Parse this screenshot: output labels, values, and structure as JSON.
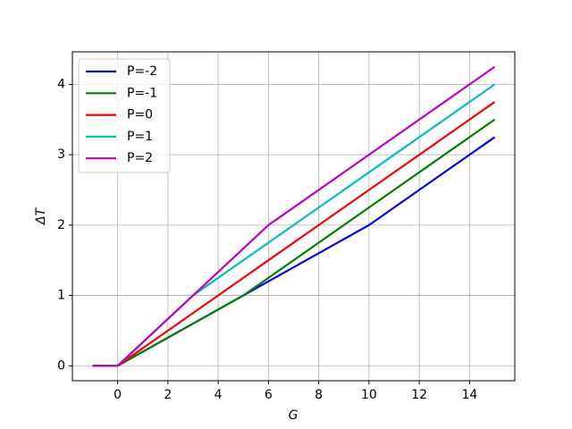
{
  "chart_data": {
    "type": "line",
    "xlabel": "G",
    "ylabel": "ΔT",
    "x": [
      -1,
      0,
      3,
      5,
      6,
      10,
      15
    ],
    "series": [
      {
        "name": "P=-2",
        "color": "#0000ff",
        "values": [
          0,
          0,
          0.6,
          1,
          1.2,
          2,
          3.25
        ]
      },
      {
        "name": "P=-1",
        "color": "#008000",
        "values": [
          0,
          0,
          0.6,
          1,
          1.25,
          2.25,
          3.5
        ]
      },
      {
        "name": "P=0",
        "color": "#ff0000",
        "values": [
          0,
          0,
          0.75,
          1.25,
          1.5,
          2.5,
          3.75
        ]
      },
      {
        "name": "P=1",
        "color": "#00bfbf",
        "values": [
          0,
          0,
          1,
          1.5,
          1.75,
          2.75,
          4
        ]
      },
      {
        "name": "P=2",
        "color": "#bf00bf",
        "values": [
          0,
          0,
          1,
          1.6667,
          2,
          3,
          4.25
        ]
      }
    ],
    "xlim": [
      -1.8,
      15.8
    ],
    "ylim": [
      -0.2125,
      4.4625
    ],
    "xticks": [
      0,
      2,
      4,
      6,
      8,
      10,
      12,
      14
    ],
    "yticks": [
      0,
      1,
      2,
      3,
      4
    ],
    "grid": true,
    "legend": "upper left"
  }
}
